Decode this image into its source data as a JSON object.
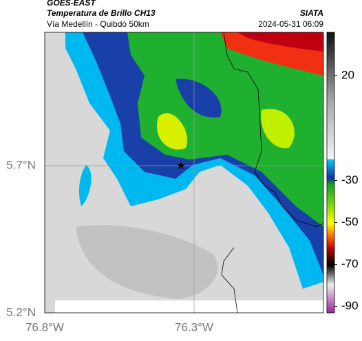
{
  "header": {
    "product": "GOES-EAST",
    "title": "Temperatura de Brillo CH13",
    "subtitle": "Vía Medellín - Quibdó 50km",
    "source": "SIATA",
    "datetime": "2024-05-31 06:09"
  },
  "map": {
    "lat_labels": [
      "5.7°N",
      "5.2°N"
    ],
    "lon_labels": [
      "76.8°W",
      "76.3°W"
    ]
  },
  "colorbar": {
    "ticks": [
      20,
      -30,
      -50,
      -70,
      -90
    ]
  }
}
